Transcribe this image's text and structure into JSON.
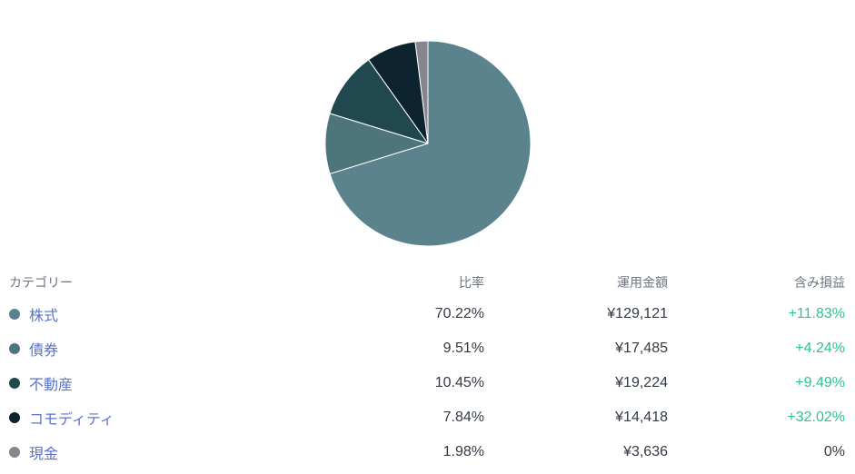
{
  "colors": {
    "background": "#ffffff",
    "category_link": "#5c73c9",
    "header_text": "#6e7582",
    "value_text": "#323a45",
    "positive_gain": "#2dc48d",
    "slice_stroke": "#ffffff"
  },
  "chart_data": {
    "type": "pie",
    "title": "",
    "start_angle_deg": 0,
    "direction": "clockwise",
    "categories": [
      "株式",
      "債券",
      "不動産",
      "コモディティ",
      "現金"
    ],
    "values": [
      70.22,
      9.51,
      10.45,
      7.84,
      1.98
    ],
    "colors": [
      "#5b838d",
      "#4e757c",
      "#22484f",
      "#0e2330",
      "#87858f"
    ],
    "legend_position": "table-below"
  },
  "table": {
    "headers": [
      {
        "label": "カテゴリー",
        "align": "left"
      },
      {
        "label": "比率",
        "align": "right"
      },
      {
        "label": "運用金額",
        "align": "right"
      },
      {
        "label": "含み損益",
        "align": "right"
      }
    ],
    "rows": [
      {
        "category": "株式",
        "dot_color": "#5b838d",
        "ratio": "70.22%",
        "amount": "¥129,121",
        "gain": "+11.83%",
        "gain_positive": true
      },
      {
        "category": "債券",
        "dot_color": "#4e757c",
        "ratio": "9.51%",
        "amount": "¥17,485",
        "gain": "+4.24%",
        "gain_positive": true
      },
      {
        "category": "不動産",
        "dot_color": "#22484f",
        "ratio": "10.45%",
        "amount": "¥19,224",
        "gain": "+9.49%",
        "gain_positive": true
      },
      {
        "category": "コモディティ",
        "dot_color": "#0e2330",
        "ratio": "7.84%",
        "amount": "¥14,418",
        "gain": "+32.02%",
        "gain_positive": true
      },
      {
        "category": "現金",
        "dot_color": "#87858f",
        "ratio": "1.98%",
        "amount": "¥3,636",
        "gain": "0%",
        "gain_positive": false
      }
    ]
  }
}
